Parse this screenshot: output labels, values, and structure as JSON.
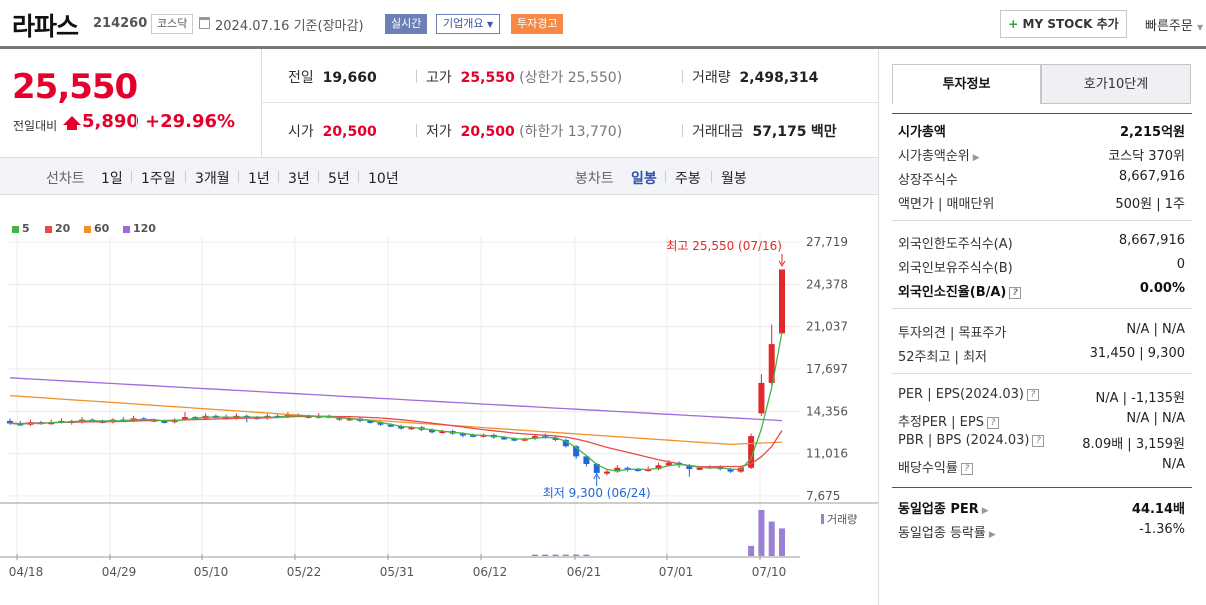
{
  "header": {
    "name": "라파스",
    "code": "214260",
    "market": "코스닥",
    "date": "2024.07.16",
    "basis": "기준(장마감)",
    "realtime": "실시간",
    "company": "기업개요",
    "warning": "투자경고",
    "mystock": "MY STOCK 추가",
    "quick_order": "빠른주문"
  },
  "price": {
    "current": "25,550",
    "change_label": "전일대비",
    "change": "5,890",
    "change_pct": "+29.96%"
  },
  "stats": {
    "prev_label": "전일",
    "prev": "19,660",
    "high_label": "고가",
    "high": "25,550",
    "upper_limit": "(상한가 25,550)",
    "volume_label": "거래량",
    "volume": "2,498,314",
    "open_label": "시가",
    "open": "20,500",
    "low_label": "저가",
    "low": "20,500",
    "lower_limit": "(하한가 13,770)",
    "amount_label": "거래대금",
    "amount": "57,175",
    "amount_unit": "백만"
  },
  "chart_tabs": {
    "line": "선차트",
    "periods": [
      "1일",
      "1주일",
      "3개월",
      "1년",
      "3년",
      "5년",
      "10년"
    ],
    "candle": "봉차트",
    "candle_periods": [
      "일봉",
      "주봉",
      "월봉"
    ]
  },
  "legend": [
    {
      "name": "5",
      "color": "#46b446"
    },
    {
      "name": "20",
      "color": "#e84a4a"
    },
    {
      "name": "60",
      "color": "#f0912c"
    },
    {
      "name": "120",
      "color": "#a06ad8"
    }
  ],
  "chart_data": {
    "type": "candlestick",
    "y_ticks": [
      "27,719",
      "24,378",
      "21,037",
      "17,697",
      "14,356",
      "11,016",
      "7,675"
    ],
    "x_ticks": [
      "04/18",
      "04/29",
      "05/10",
      "05/22",
      "05/31",
      "06/12",
      "06/21",
      "07/01",
      "07/10"
    ],
    "ylim": [
      7675,
      27719
    ],
    "max_label": "최고 25,550 (07/16)",
    "min_label": "최저 9,300 (06/24)",
    "volume_label": "거래량",
    "ma_colors": {
      "5": "#46b446",
      "20": "#e84a4a",
      "60": "#f0912c",
      "120": "#a06ad8"
    },
    "candles": [
      [
        13600,
        13400,
        13800,
        13300
      ],
      [
        13400,
        13300,
        13600,
        13200
      ],
      [
        13300,
        13500,
        13700,
        13200
      ],
      [
        13500,
        13400,
        13600,
        13300
      ],
      [
        13400,
        13500,
        13700,
        13300
      ],
      [
        13500,
        13600,
        13800,
        13400
      ],
      [
        13600,
        13500,
        13700,
        13300
      ],
      [
        13500,
        13700,
        13900,
        13400
      ],
      [
        13700,
        13600,
        13800,
        13500
      ],
      [
        13600,
        13500,
        13700,
        13400
      ],
      [
        13500,
        13700,
        13800,
        13400
      ],
      [
        13700,
        13600,
        13900,
        13500
      ],
      [
        13600,
        13800,
        14000,
        13500
      ],
      [
        13800,
        13700,
        13900,
        13600
      ],
      [
        13700,
        13600,
        13800,
        13500
      ],
      [
        13600,
        13500,
        13700,
        13400
      ],
      [
        13500,
        13700,
        13800,
        13400
      ],
      [
        13700,
        13900,
        14300,
        13600
      ],
      [
        13900,
        13800,
        14000,
        13700
      ],
      [
        13800,
        14000,
        14200,
        13700
      ],
      [
        14000,
        13900,
        14100,
        13800
      ],
      [
        13900,
        13800,
        14100,
        13700
      ],
      [
        13800,
        14000,
        14200,
        13700
      ],
      [
        14000,
        13900,
        14100,
        13500
      ],
      [
        13900,
        13800,
        14000,
        13700
      ],
      [
        13800,
        14000,
        14200,
        13700
      ],
      [
        14000,
        13900,
        14100,
        13800
      ],
      [
        13900,
        14100,
        14300,
        13800
      ],
      [
        14100,
        14000,
        14200,
        13900
      ],
      [
        14000,
        13900,
        14100,
        13800
      ],
      [
        13900,
        14000,
        14200,
        13800
      ],
      [
        14000,
        13900,
        14100,
        13800
      ],
      [
        13900,
        13700,
        14000,
        13600
      ],
      [
        13700,
        13800,
        13900,
        13600
      ],
      [
        13800,
        13600,
        13900,
        13500
      ],
      [
        13600,
        13500,
        13700,
        13400
      ],
      [
        13500,
        13300,
        13600,
        13200
      ],
      [
        13300,
        13200,
        13400,
        13100
      ],
      [
        13200,
        13000,
        13300,
        12900
      ],
      [
        13000,
        13100,
        13200,
        12900
      ],
      [
        13100,
        12900,
        13200,
        12800
      ],
      [
        12900,
        12700,
        13000,
        12600
      ],
      [
        12700,
        12800,
        12900,
        12600
      ],
      [
        12800,
        12600,
        12900,
        12500
      ],
      [
        12600,
        12500,
        12700,
        12300
      ],
      [
        12500,
        12400,
        12600,
        12300
      ],
      [
        12400,
        12500,
        12600,
        12300
      ],
      [
        12500,
        12300,
        12600,
        12200
      ],
      [
        12300,
        12200,
        12400,
        12100
      ],
      [
        12200,
        12100,
        12300,
        12000
      ],
      [
        12100,
        12200,
        12300,
        12000
      ],
      [
        12200,
        12400,
        12500,
        12100
      ],
      [
        12400,
        12300,
        12600,
        12200
      ],
      [
        12300,
        12100,
        12400,
        12000
      ],
      [
        12100,
        11600,
        12200,
        11500
      ],
      [
        11600,
        10800,
        11700,
        10600
      ],
      [
        10800,
        10200,
        10900,
        10000
      ],
      [
        10200,
        9500,
        10300,
        9300
      ],
      [
        9500,
        9600,
        9800,
        9300
      ],
      [
        9600,
        9900,
        10100,
        9500
      ],
      [
        9900,
        9800,
        10000,
        9600
      ],
      [
        9800,
        9700,
        9900,
        9600
      ],
      [
        9700,
        9800,
        10000,
        9600
      ],
      [
        9800,
        10100,
        10300,
        9700
      ],
      [
        10100,
        10300,
        10500,
        10000
      ],
      [
        10300,
        10100,
        10400,
        9900
      ],
      [
        10100,
        9800,
        10200,
        9200
      ],
      [
        9800,
        9900,
        10000,
        9700
      ],
      [
        9900,
        10000,
        10100,
        9800
      ],
      [
        10000,
        9800,
        10100,
        9700
      ],
      [
        9800,
        9600,
        9900,
        9500
      ],
      [
        9600,
        9900,
        10000,
        9500
      ],
      [
        9900,
        12400,
        12600,
        9800
      ],
      [
        14200,
        16600,
        17300,
        14000
      ],
      [
        16600,
        19660,
        21200,
        16400
      ],
      [
        20500,
        25550,
        25550,
        20500
      ]
    ],
    "volumes": [
      0,
      0,
      0,
      0,
      0,
      0,
      0,
      0,
      0,
      0,
      0,
      0,
      0,
      0,
      0,
      0,
      0,
      0,
      0,
      0,
      0,
      0,
      0,
      0,
      0,
      0,
      0,
      0,
      0,
      0,
      0,
      0,
      0,
      0,
      0,
      0,
      0,
      0,
      0,
      0,
      0,
      0,
      0,
      0,
      0,
      0,
      0,
      0,
      0,
      0,
      0,
      0.03,
      0.03,
      0.03,
      0.03,
      0.03,
      0.03,
      0,
      0,
      0,
      0,
      0,
      0,
      0,
      0,
      0,
      0,
      0,
      0,
      0,
      0,
      0,
      0.22,
      1,
      0.75,
      0.6
    ]
  },
  "panel": {
    "tab_on": "투자정보",
    "tab_off": "호가10단계",
    "rows": [
      {
        "k": "시가총액",
        "v": "2,215억원"
      },
      {
        "k": "시가총액순위",
        "v": "코스닥 370위"
      },
      {
        "k": "상장주식수",
        "v": "8,667,916"
      },
      {
        "k": "액면가 | 매매단위",
        "v": "500원 | 1주"
      },
      {
        "k": "외국인한도주식수(A)",
        "v": "8,667,916"
      },
      {
        "k": "외국인보유주식수(B)",
        "v": "0"
      },
      {
        "k": "외국인소진율(B/A)",
        "v": "0.00%"
      },
      {
        "k": "투자의견 | 목표주가",
        "v": "N/A | N/A"
      },
      {
        "k": "52주최고 | 최저",
        "v": "31,450 | 9,300"
      },
      {
        "k": "PER | EPS(2024.03)",
        "v": "N/A | -1,135원"
      },
      {
        "k": "추정PER | EPS",
        "v": "N/A | N/A"
      },
      {
        "k": "PBR | BPS (2024.03)",
        "v": "8.09배 | 3,159원"
      },
      {
        "k": "배당수익률",
        "v": "N/A"
      },
      {
        "k": "동일업종 PER",
        "v": "44.14배"
      },
      {
        "k": "동일업종 등락률",
        "v": "-1.36%"
      }
    ]
  }
}
